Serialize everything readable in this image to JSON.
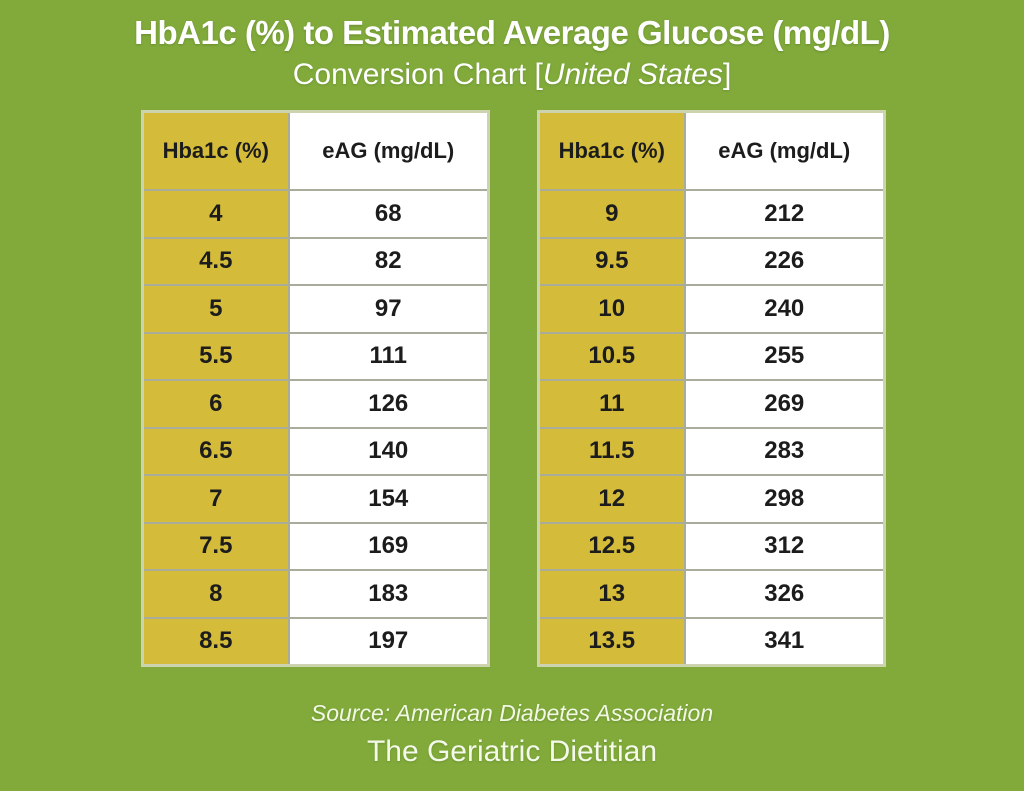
{
  "page": {
    "title": "HbA1c (%) to Estimated Average Glucose (mg/dL)",
    "subtitle_prefix": "Conversion Chart [",
    "subtitle_italic": "United States",
    "subtitle_suffix": "]",
    "source": "Source: American Diabetes Association",
    "brand": "The Geriatric Dietitian"
  },
  "colors": {
    "background_green": "#81aa3b",
    "header_yellow": "#d4bb3a",
    "cell_white": "#ffffff",
    "table_text": "#1c1c1c",
    "title_text": "#ffffff"
  },
  "tables": [
    {
      "headers": {
        "hba1c": "Hba1c (%)",
        "eag": "eAG (mg/dL)"
      },
      "rows": [
        {
          "hba1c": "4",
          "eag": "68"
        },
        {
          "hba1c": "4.5",
          "eag": "82"
        },
        {
          "hba1c": "5",
          "eag": "97"
        },
        {
          "hba1c": "5.5",
          "eag": "111"
        },
        {
          "hba1c": "6",
          "eag": "126"
        },
        {
          "hba1c": "6.5",
          "eag": "140"
        },
        {
          "hba1c": "7",
          "eag": "154"
        },
        {
          "hba1c": "7.5",
          "eag": "169"
        },
        {
          "hba1c": "8",
          "eag": "183"
        },
        {
          "hba1c": "8.5",
          "eag": "197"
        }
      ]
    },
    {
      "headers": {
        "hba1c": "Hba1c (%)",
        "eag": "eAG (mg/dL)"
      },
      "rows": [
        {
          "hba1c": "9",
          "eag": "212"
        },
        {
          "hba1c": "9.5",
          "eag": "226"
        },
        {
          "hba1c": "10",
          "eag": "240"
        },
        {
          "hba1c": "10.5",
          "eag": "255"
        },
        {
          "hba1c": "11",
          "eag": "269"
        },
        {
          "hba1c": "11.5",
          "eag": "283"
        },
        {
          "hba1c": "12",
          "eag": "298"
        },
        {
          "hba1c": "12.5",
          "eag": "312"
        },
        {
          "hba1c": "13",
          "eag": "326"
        },
        {
          "hba1c": "13.5",
          "eag": "341"
        }
      ]
    }
  ],
  "chart_data": {
    "type": "table",
    "title": "HbA1c (%) to Estimated Average Glucose (mg/dL) Conversion Chart [United States]",
    "columns": [
      "Hba1c (%)",
      "eAG (mg/dL)"
    ],
    "rows": [
      [
        4,
        68
      ],
      [
        4.5,
        82
      ],
      [
        5,
        97
      ],
      [
        5.5,
        111
      ],
      [
        6,
        126
      ],
      [
        6.5,
        140
      ],
      [
        7,
        154
      ],
      [
        7.5,
        169
      ],
      [
        8,
        183
      ],
      [
        8.5,
        197
      ],
      [
        9,
        212
      ],
      [
        9.5,
        226
      ],
      [
        10,
        240
      ],
      [
        10.5,
        255
      ],
      [
        11,
        269
      ],
      [
        11.5,
        283
      ],
      [
        12,
        298
      ],
      [
        12.5,
        312
      ],
      [
        13,
        326
      ],
      [
        13.5,
        341
      ]
    ],
    "source": "Source: American Diabetes Association",
    "layout": "two side-by-side tables, rows 4-8.5 left, rows 9-13.5 right"
  }
}
